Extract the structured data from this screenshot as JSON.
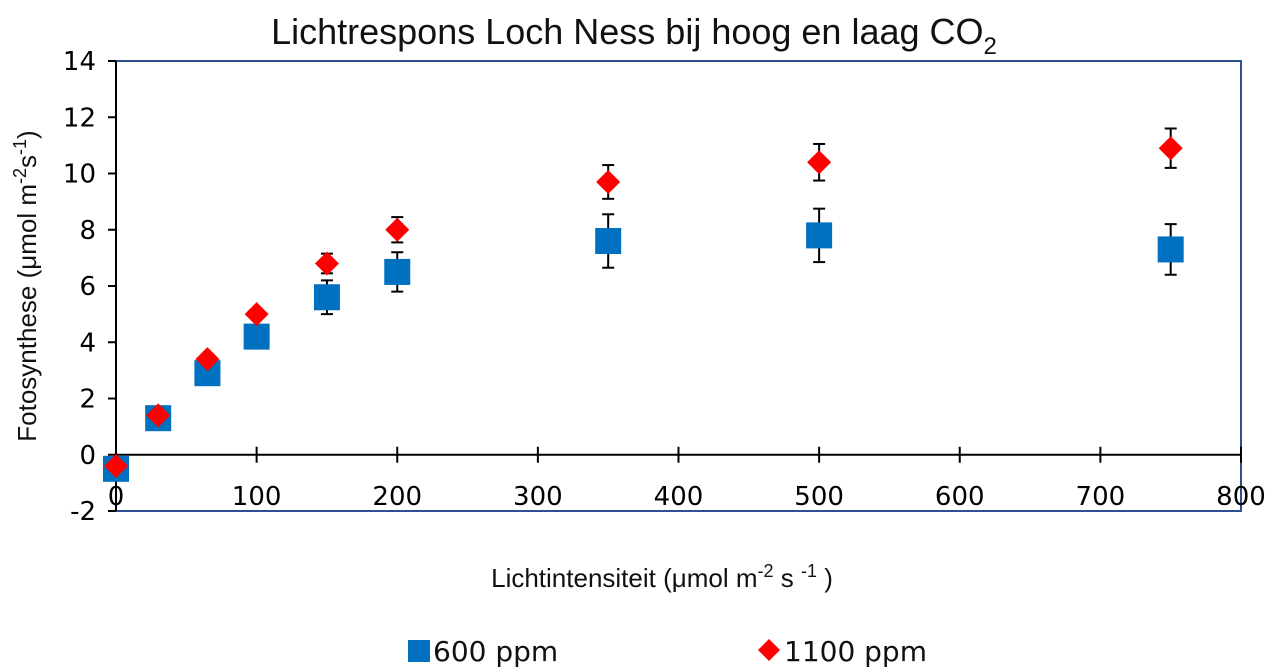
{
  "chart_data": {
    "type": "scatter",
    "title": "Lichtrespons Loch Ness bij hoog en laag CO",
    "title_subscript": "2",
    "xlabel": "Lichtintensiteit  (μmol m",
    "xlabel_sup1": "-2",
    "xlabel_mid": " s ",
    "xlabel_sup2": "-1",
    "xlabel_end": " )",
    "ylabel": "Fotosynthese (μmol m",
    "ylabel_sup1": "-2",
    "ylabel_mid": "s",
    "ylabel_sup2": "-1",
    "ylabel_end": ")",
    "xlim": [
      0,
      800
    ],
    "ylim": [
      -2,
      14
    ],
    "xticks": [
      "0",
      "100",
      "200",
      "300",
      "400",
      "500",
      "600",
      "700",
      "800"
    ],
    "yticks": [
      "-2",
      "0",
      "2",
      "4",
      "6",
      "8",
      "10",
      "12",
      "14"
    ],
    "grid": false,
    "legend_placement": "bottom",
    "series": [
      {
        "name": "600 ppm",
        "marker": "square",
        "color": "#0070C0",
        "points": [
          {
            "x": 0,
            "y": -0.5,
            "err": 0
          },
          {
            "x": 30,
            "y": 1.3,
            "err": 0
          },
          {
            "x": 65,
            "y": 2.9,
            "err": 0
          },
          {
            "x": 100,
            "y": 4.2,
            "err": 0
          },
          {
            "x": 150,
            "y": 5.6,
            "err": 0.6
          },
          {
            "x": 200,
            "y": 6.5,
            "err": 0.7
          },
          {
            "x": 350,
            "y": 7.6,
            "err": 0.95
          },
          {
            "x": 500,
            "y": 7.8,
            "err": 0.95
          },
          {
            "x": 750,
            "y": 7.3,
            "err": 0.9
          }
        ]
      },
      {
        "name": "1100 ppm",
        "marker": "diamond",
        "color": "#FF0000",
        "points": [
          {
            "x": 0,
            "y": -0.4,
            "err": 0
          },
          {
            "x": 30,
            "y": 1.4,
            "err": 0
          },
          {
            "x": 65,
            "y": 3.4,
            "err": 0
          },
          {
            "x": 100,
            "y": 5.0,
            "err": 0
          },
          {
            "x": 150,
            "y": 6.8,
            "err": 0.35
          },
          {
            "x": 200,
            "y": 8.0,
            "err": 0.45
          },
          {
            "x": 350,
            "y": 9.7,
            "err": 0.6
          },
          {
            "x": 500,
            "y": 10.4,
            "err": 0.65
          },
          {
            "x": 750,
            "y": 10.9,
            "err": 0.7
          }
        ]
      }
    ]
  }
}
